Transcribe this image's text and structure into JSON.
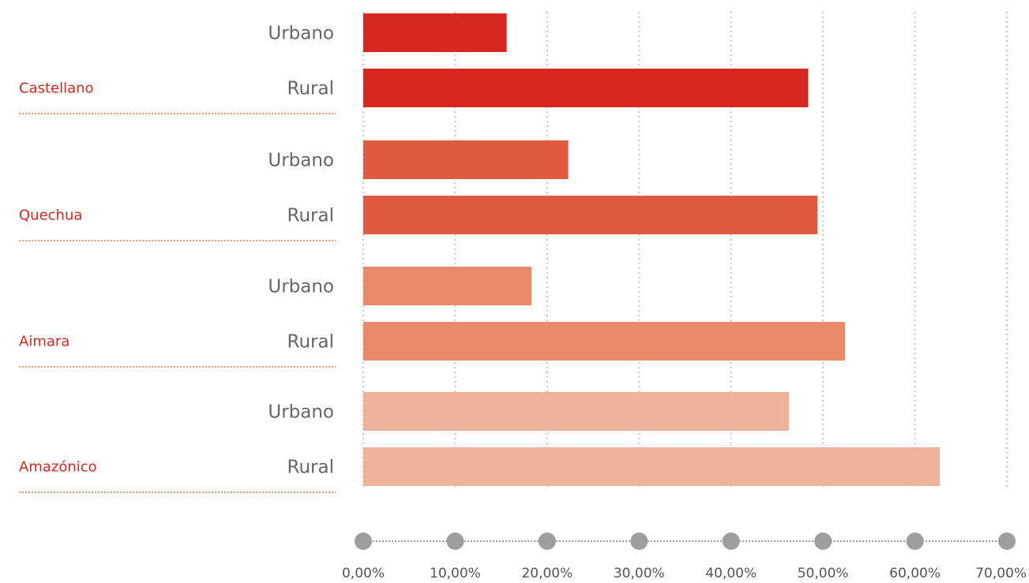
{
  "chart_data": {
    "type": "bar",
    "orientation": "horizontal",
    "categories": [
      "Urbano",
      "Rural",
      "Urbano",
      "Rural",
      "Urbano",
      "Rural",
      "Urbano",
      "Rural"
    ],
    "values": [
      15.6,
      48.4,
      22.3,
      49.4,
      18.3,
      52.4,
      46.3,
      62.7
    ],
    "groups": [
      {
        "name": "Castellano",
        "label": "Castellano",
        "rows": [
          0,
          1
        ],
        "color": "#d6281f"
      },
      {
        "name": "Quechua",
        "label": "Quechua",
        "rows": [
          2,
          3
        ],
        "color": "#df5a3f"
      },
      {
        "name": "Aimara",
        "label": "Aimara",
        "rows": [
          4,
          5
        ],
        "color": "#e8896b"
      },
      {
        "name": "Amazónico",
        "label": "Amazónico",
        "rows": [
          6,
          7
        ],
        "color": "#efb29b"
      }
    ],
    "xlim": [
      0,
      70
    ],
    "xticks": [
      0,
      10,
      20,
      30,
      40,
      50,
      60,
      70
    ],
    "xtick_labels": [
      "0,00%",
      "10,00%",
      "20,00%",
      "30,00%",
      "40,00%",
      "50,00%",
      "60,00%",
      "70,00%"
    ],
    "grid": true,
    "title": "",
    "xlabel": "",
    "ylabel": ""
  },
  "side_labels": [
    {
      "text": "Castellano",
      "after_row": 1
    },
    {
      "text": "Quechua",
      "after_row": 3
    },
    {
      "text": "Aimara",
      "after_row": 5
    },
    {
      "text": "Amazónico",
      "after_row": 7
    }
  ],
  "colors": {
    "grid": "#c8c8c8",
    "axis_dot": "#9e9e9e",
    "category_text": "#666666",
    "group_text": "#d6281f",
    "separator": "#ef9a6e"
  }
}
